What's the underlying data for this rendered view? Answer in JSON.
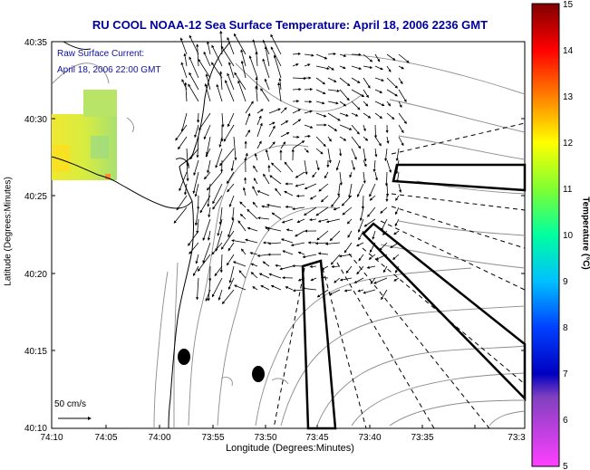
{
  "title": "RU COOL  NOAA-12  Sea Surface Temperature:  April 18, 2006 2236 GMT",
  "annotation": {
    "line1": "Raw Surface Current:",
    "line2": "April 18, 2006 22:00 GMT"
  },
  "axes": {
    "xlabel": "Longitude (Degrees:Minutes)",
    "ylabel": "Latitude (Degrees:Minutes)",
    "x_ticks": [
      "74:10",
      "74:05",
      "74:00",
      "73:55",
      "73:50",
      "73:45",
      "73:40",
      "73:35",
      "73:3"
    ],
    "y_ticks": [
      "40:35",
      "40:30",
      "40:25",
      "40:20",
      "40:15",
      "40:10"
    ]
  },
  "scale": {
    "label": "50 cm/s"
  },
  "colorbar": {
    "label": "Temperature (°C)",
    "ticks": [
      "15",
      "14",
      "13",
      "12",
      "11",
      "10",
      "9",
      "8",
      "7",
      "6",
      "5"
    ],
    "colors": [
      "#a00000",
      "#ff0000",
      "#ff8000",
      "#ffff00",
      "#80ff40",
      "#00e0e0",
      "#0080ff",
      "#0000ff",
      "#6000c0",
      "#ff40ff"
    ]
  }
}
